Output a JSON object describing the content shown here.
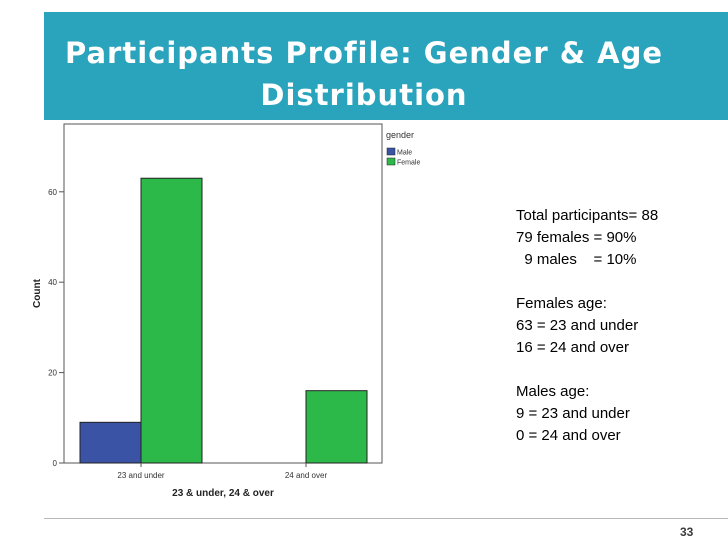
{
  "slide": {
    "title": "Participants Profile: Gender & Age Distribution",
    "page_number": "33",
    "accent_color": "#2aa3bd"
  },
  "stats": {
    "lines": [
      "Total participants= 88",
      "79 females = 90%",
      "  9 males    = 10%",
      "",
      "Females age:",
      "63 = 23 and under",
      "16 = 24 and over",
      "",
      "Males age:",
      "9 = 23 and under",
      "0 = 24 and over"
    ]
  },
  "chart_data": {
    "type": "bar",
    "categories": [
      "23 and under",
      "24 and over"
    ],
    "series": [
      {
        "name": "Male",
        "values": [
          9,
          0
        ],
        "color": "#3a53a4"
      },
      {
        "name": "Female",
        "values": [
          63,
          16
        ],
        "color": "#2db84a"
      }
    ],
    "xlabel": "23 & under, 24 & over",
    "ylabel": "Count",
    "ylim": [
      0,
      75
    ],
    "yticks": [
      0,
      20,
      40,
      60
    ],
    "legend_title": "gender",
    "legend_position": "top-right",
    "grid": false
  }
}
